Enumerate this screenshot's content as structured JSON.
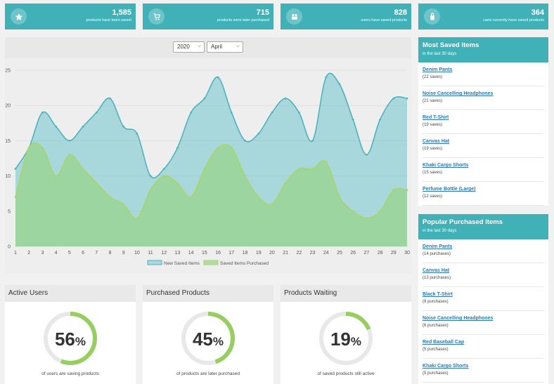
{
  "stats": [
    {
      "value": "1,585",
      "label": "products have been saved",
      "icon": "star-icon"
    },
    {
      "value": "715",
      "label": "products were later purchased",
      "icon": "cart-icon"
    },
    {
      "value": "828",
      "label": "users have saved products",
      "icon": "users-icon"
    },
    {
      "value": "364",
      "label": "carts currently have saved products",
      "icon": "bag-icon"
    }
  ],
  "filters": {
    "year": "2020",
    "month": "April"
  },
  "chart_data": {
    "type": "area",
    "x": [
      1,
      2,
      3,
      4,
      5,
      6,
      7,
      8,
      9,
      10,
      11,
      12,
      13,
      14,
      15,
      16,
      17,
      18,
      19,
      20,
      21,
      22,
      23,
      24,
      25,
      26,
      27,
      28,
      29,
      30
    ],
    "yticks": [
      0,
      5,
      10,
      15,
      20,
      25
    ],
    "ylim": [
      0,
      25
    ],
    "series": [
      {
        "name": "New Saved Items",
        "color": "#4fb3bf",
        "values": [
          11,
          14,
          19,
          17,
          15,
          17,
          19,
          21,
          17,
          16,
          10,
          11,
          14,
          19,
          21,
          24,
          19,
          15,
          16,
          19,
          21,
          19,
          15,
          24,
          23,
          18,
          13,
          18,
          21,
          21
        ]
      },
      {
        "name": "Saved Items Purchased",
        "color": "#a9d46a",
        "values": [
          7,
          14,
          14,
          10,
          13,
          11,
          9,
          7,
          6,
          4,
          8,
          10,
          9,
          7,
          11,
          14,
          14,
          10,
          7,
          6,
          9,
          11,
          11,
          12,
          7,
          5,
          4,
          5,
          8,
          8
        ]
      }
    ]
  },
  "most_saved": {
    "title": "Most Saved Items",
    "subtitle": "in the last 30 days",
    "items": [
      {
        "name": "Denim Pants",
        "count": "(22 saves)"
      },
      {
        "name": "Noise Cancelling Headphones",
        "count": "(21 saves)"
      },
      {
        "name": "Red T-Shirt",
        "count": "(19 saves)"
      },
      {
        "name": "Canvas Hat",
        "count": "(19 saves)"
      },
      {
        "name": "Khaki Cargo Shorts",
        "count": "(15 saves)"
      },
      {
        "name": "Perfume Bottle (Large)",
        "count": "(12 saves)"
      }
    ]
  },
  "popular_purchased": {
    "title": "Popular Purchased Items",
    "subtitle": "in the last 30 days",
    "items": [
      {
        "name": "Denim Pants",
        "count": "(14 purchases)"
      },
      {
        "name": "Canvas Hat",
        "count": "(13 purchases)"
      },
      {
        "name": "Black T-Shirt",
        "count": "(9 purchases)"
      },
      {
        "name": "Noise Cancelling Headphones",
        "count": "(6 purchases)"
      },
      {
        "name": "Red Baseball Cap",
        "count": "(5 purchases)"
      },
      {
        "name": "Khaki Cargo Shorts",
        "count": "(5 purchases)"
      }
    ]
  },
  "gauges": [
    {
      "title": "Active Users",
      "percent": 56,
      "value": "56",
      "unit": "%",
      "caption": "of users are saving products"
    },
    {
      "title": "Purchased Products",
      "percent": 45,
      "value": "45",
      "unit": "%",
      "caption": "of products are later purchased"
    },
    {
      "title": "Products Waiting",
      "percent": 19,
      "value": "19",
      "unit": "%",
      "caption": "of saved products still active"
    }
  ],
  "colors": {
    "accent": "#3fb1b7",
    "gauge": "#96cf5f",
    "gauge_track": "#e8e8e8"
  }
}
